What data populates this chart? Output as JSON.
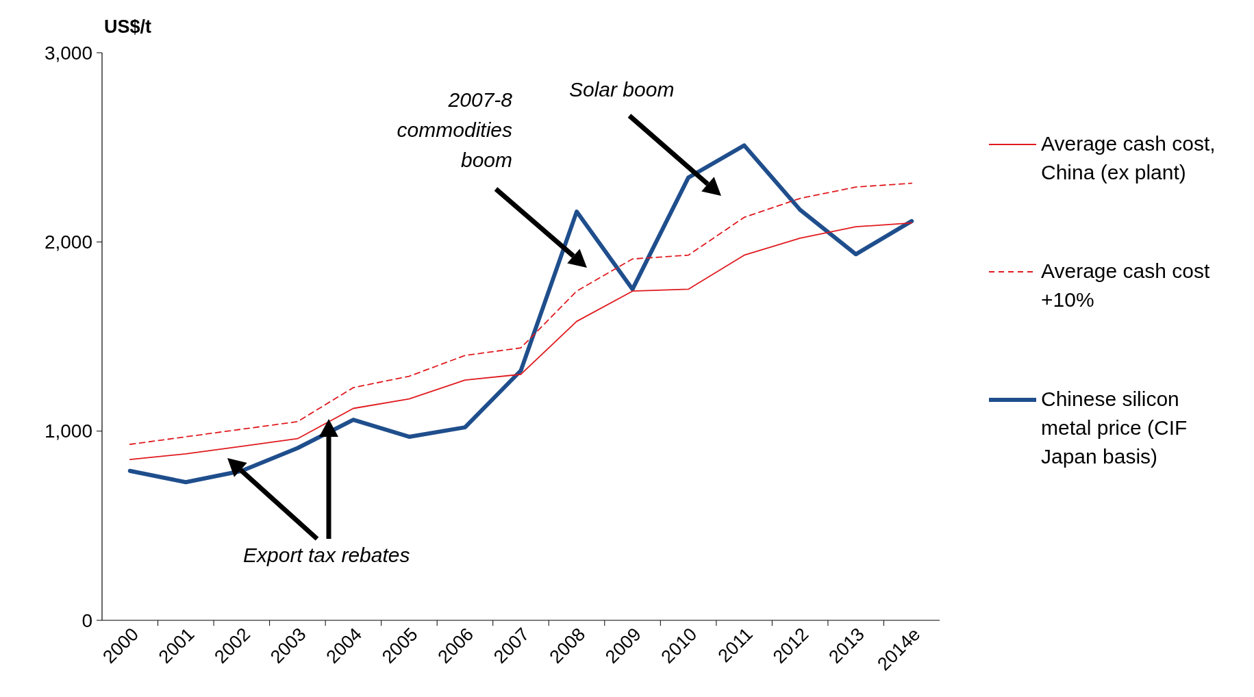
{
  "chart_data": {
    "type": "line",
    "ylabel": "US$/t",
    "categories": [
      "2000",
      "2001",
      "2002",
      "2003",
      "2004",
      "2005",
      "2006",
      "2007",
      "2008",
      "2009",
      "2010",
      "2011",
      "2012",
      "2013",
      "2014e"
    ],
    "series": [
      {
        "name": "Average cash cost, China (ex plant)",
        "color": "#e0191e",
        "line_style": "solid",
        "values": [
          850,
          880,
          920,
          960,
          1120,
          1170,
          1270,
          1300,
          1580,
          1740,
          1750,
          1930,
          2020,
          2080,
          2100
        ]
      },
      {
        "name": "Average cash cost +10%",
        "color": "#e0191e",
        "line_style": "dashed",
        "values": [
          930,
          970,
          1010,
          1050,
          1230,
          1290,
          1400,
          1440,
          1740,
          1910,
          1930,
          2130,
          2230,
          2290,
          2310
        ]
      },
      {
        "name": "Chinese silicon metal price (CIF Japan basis)",
        "color": "#1f4e8c",
        "line_style": "solid",
        "values": [
          790,
          730,
          790,
          910,
          1060,
          970,
          1020,
          1320,
          2160,
          1750,
          2340,
          2510,
          2170,
          1935,
          2110
        ]
      }
    ],
    "ylim": [
      0,
      3000
    ],
    "yticks": [
      0,
      {
        "value": 1000,
        "label": "1,000"
      },
      {
        "value": 2000,
        "label": "2,000"
      },
      {
        "value": 3000,
        "label": "3,000"
      }
    ],
    "grid": false,
    "legend": "right",
    "marker": "none",
    "annotations": [
      "2007-8 commodities boom",
      "Solar boom",
      "Export tax rebates"
    ]
  }
}
